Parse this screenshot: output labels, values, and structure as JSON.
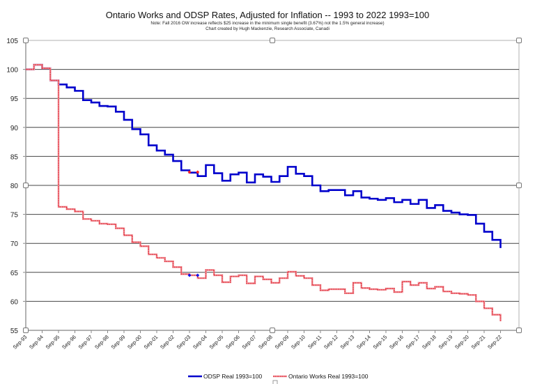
{
  "chart_data": {
    "type": "line",
    "step": true,
    "title": "Ontario Works and ODSP Rates, Adjusted for Inflation -- 1993 to 2022 1993=100",
    "notes": [
      "Note: Fall 2016 OW increase reflects $25 increase in the minimum single benefit (3.67%) not the 1.5% general increase)",
      "Chart created by Hugh Mackenzie, Research Associate, Canadi"
    ],
    "xlabel": "",
    "ylabel": "",
    "ylim": [
      55,
      105
    ],
    "yticks": [
      55,
      60,
      65,
      70,
      75,
      80,
      85,
      90,
      95,
      100,
      105
    ],
    "xtick_labels": [
      "Sep-93",
      "Sep-94",
      "Sep-95",
      "Sep-96",
      "Sep-97",
      "Sep-98",
      "Sep-99",
      "Sep-00",
      "Sep-01",
      "Sep-02",
      "Sep-03",
      "Sep-04",
      "Sep-05",
      "Sep-06",
      "Sep-07",
      "Sep-08",
      "Sep-09",
      "Sep-10",
      "Sep-11",
      "Sep-12",
      "Sep-13",
      "Sep-14",
      "Sep-15",
      "Sep-16",
      "Sep-17",
      "Sep-18",
      "Sep-19",
      "Sep-20",
      "Sep-21",
      "Sep-22"
    ],
    "grid": true,
    "legend_placement": "bottom",
    "x": [
      "1993-09",
      "1994-03",
      "1994-09",
      "1995-03",
      "1995-09",
      "1996-03",
      "1996-09",
      "1997-03",
      "1997-09",
      "1998-03",
      "1998-09",
      "1999-03",
      "1999-09",
      "2000-03",
      "2000-09",
      "2001-03",
      "2001-09",
      "2002-03",
      "2002-09",
      "2003-03",
      "2003-09",
      "2004-03",
      "2004-09",
      "2005-03",
      "2005-09",
      "2006-03",
      "2006-09",
      "2007-03",
      "2007-09",
      "2008-03",
      "2008-09",
      "2009-03",
      "2009-09",
      "2010-03",
      "2010-09",
      "2011-03",
      "2011-09",
      "2012-03",
      "2012-09",
      "2013-03",
      "2013-09",
      "2014-03",
      "2014-09",
      "2015-03",
      "2015-09",
      "2016-03",
      "2016-09",
      "2017-03",
      "2017-09",
      "2018-03",
      "2018-09",
      "2019-03",
      "2019-09",
      "2020-03",
      "2020-09",
      "2021-03",
      "2021-09",
      "2022-03",
      "2022-09"
    ],
    "series": [
      {
        "name": "ODSP Real 1993=100",
        "color": "#0000cc",
        "values": [
          100,
          100.8,
          100.2,
          98.1,
          97.4,
          96.9,
          96.3,
          94.7,
          94.3,
          93.7,
          93.6,
          92.7,
          91.3,
          89.7,
          88.8,
          86.9,
          86.0,
          85.3,
          84.2,
          82.6,
          82.2,
          81.6,
          83.5,
          82.1,
          80.8,
          81.9,
          82.2,
          80.5,
          81.9,
          81.5,
          80.6,
          81.6,
          83.2,
          82.0,
          81.6,
          80.0,
          79.0,
          79.2,
          79.2,
          78.3,
          79.0,
          77.9,
          77.7,
          77.5,
          77.8,
          77.1,
          77.5,
          76.8,
          77.5,
          76.1,
          76.6,
          75.6,
          75.3,
          75.0,
          74.9,
          73.4,
          72.0,
          70.6,
          69.2
        ]
      },
      {
        "name": "Ontario Works Real 1993=100",
        "color": "#e0303a",
        "values": [
          100,
          100.8,
          100.2,
          98.1,
          76.3,
          75.9,
          75.5,
          74.2,
          73.9,
          73.4,
          73.3,
          72.6,
          71.4,
          70.2,
          69.5,
          68.1,
          67.5,
          66.9,
          65.9,
          64.7,
          64.5,
          64.0,
          65.4,
          64.5,
          63.3,
          64.3,
          64.5,
          63.1,
          64.3,
          63.8,
          63.2,
          64.0,
          65.1,
          64.4,
          64.0,
          62.8,
          61.9,
          62.1,
          62.1,
          61.4,
          63.2,
          62.3,
          62.1,
          62.0,
          62.2,
          61.6,
          63.4,
          62.8,
          63.2,
          62.2,
          62.5,
          61.7,
          61.4,
          61.3,
          61.1,
          60.0,
          58.8,
          57.7,
          56.6
        ]
      }
    ],
    "markers": [
      {
        "x": "2003-09",
        "y": 82.3,
        "color": "#ff2020"
      },
      {
        "x": "2004-03",
        "y": 82.3,
        "color": "#ff2020"
      },
      {
        "x": "2003-09",
        "y": 64.5,
        "color": "#1010ee"
      },
      {
        "x": "2004-03",
        "y": 64.5,
        "color": "#1010ee"
      }
    ]
  }
}
